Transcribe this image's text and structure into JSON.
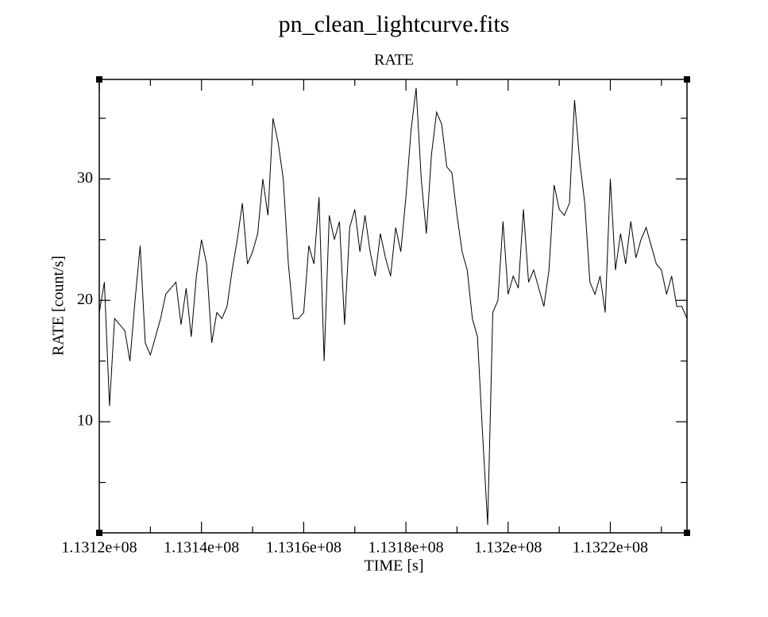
{
  "chart_data": {
    "type": "line",
    "title": "pn_clean_lightcurve.fits",
    "subtitle": "RATE",
    "x_label": "TIME [s]",
    "y_label": "RATE [count/s]",
    "xlim": [
      113120000,
      113235000
    ],
    "ylim": [
      0.85,
      38.2
    ],
    "xticks": [
      {
        "value": 113120000,
        "label": "1.1312e+08"
      },
      {
        "value": 113140000,
        "label": "1.1314e+08"
      },
      {
        "value": 113160000,
        "label": "1.1316e+08"
      },
      {
        "value": 113180000,
        "label": "1.1318e+08"
      },
      {
        "value": 113200000,
        "label": "1.132e+08"
      },
      {
        "value": 113220000,
        "label": "1.1322e+08"
      }
    ],
    "xminorticks": [
      113130000,
      113150000,
      113170000,
      113190000,
      113210000,
      113230000
    ],
    "yticks": [
      10,
      20,
      30
    ],
    "yminorticks": [
      5,
      15,
      25,
      35
    ],
    "x": [
      113120000,
      113121000,
      113122000,
      113123000,
      113124000,
      113125000,
      113126000,
      113127000,
      113128000,
      113129000,
      113130000,
      113131000,
      113132000,
      113133000,
      113134000,
      113135000,
      113136000,
      113137000,
      113138000,
      113139000,
      113140000,
      113141000,
      113142000,
      113143000,
      113144000,
      113145000,
      113146000,
      113147000,
      113148000,
      113149000,
      113150000,
      113151000,
      113152000,
      113153000,
      113154000,
      113155000,
      113156000,
      113157000,
      113158000,
      113159000,
      113160000,
      113161000,
      113162000,
      113163000,
      113164000,
      113165000,
      113166000,
      113167000,
      113168000,
      113169000,
      113170000,
      113171000,
      113172000,
      113173000,
      113174000,
      113175000,
      113176000,
      113177000,
      113178000,
      113179000,
      113180000,
      113181000,
      113182000,
      113183000,
      113184000,
      113185000,
      113186000,
      113187000,
      113188000,
      113189000,
      113190000,
      113191000,
      113192000,
      113193000,
      113194000,
      113195000,
      113196000,
      113197000,
      113198000,
      113199000,
      113200000,
      113201000,
      113202000,
      113203000,
      113204000,
      113205000,
      113206000,
      113207000,
      113208000,
      113209000,
      113210000,
      113211000,
      113212000,
      113213000,
      113214000,
      113215000,
      113216000,
      113217000,
      113218000,
      113219000,
      113220000,
      113221000,
      113222000,
      113223000,
      113224000,
      113225000,
      113226000,
      113227000,
      113228000,
      113229000,
      113230000,
      113231000,
      113232000,
      113233000,
      113234000,
      113235000
    ],
    "series": [
      {
        "color": "#000000",
        "values": [
          19,
          21.5,
          11.3,
          18.5,
          18,
          17.5,
          15,
          20,
          24.5,
          16.5,
          15.5,
          17,
          18.5,
          20.5,
          21,
          21.5,
          18,
          21,
          17,
          22,
          25,
          23,
          16.5,
          19,
          18.5,
          19.5,
          22.5,
          25,
          28,
          23,
          24,
          25.5,
          30,
          27,
          35,
          33,
          30,
          23,
          18.5,
          18.5,
          19,
          24.5,
          23,
          28.5,
          15,
          27,
          25,
          26.5,
          18,
          26,
          27.5,
          24,
          27,
          24,
          22,
          25.5,
          23.5,
          22,
          26,
          24,
          28.5,
          34,
          37.5,
          30,
          25.5,
          32,
          35.5,
          34.5,
          31,
          30.5,
          27,
          24,
          22.5,
          18.5,
          17,
          9,
          1.5,
          19,
          20,
          26.5,
          20.5,
          22,
          21,
          27.5,
          21.5,
          22.5,
          21,
          19.5,
          22.5,
          29.5,
          27.5,
          27,
          28,
          36.5,
          31.5,
          28,
          21.5,
          20.5,
          22,
          19,
          30,
          22.5,
          25.5,
          23,
          26.5,
          23.5,
          25,
          26,
          24.5,
          23,
          22.5,
          20.5,
          22,
          19.5,
          19.5,
          18.5
        ]
      }
    ]
  }
}
